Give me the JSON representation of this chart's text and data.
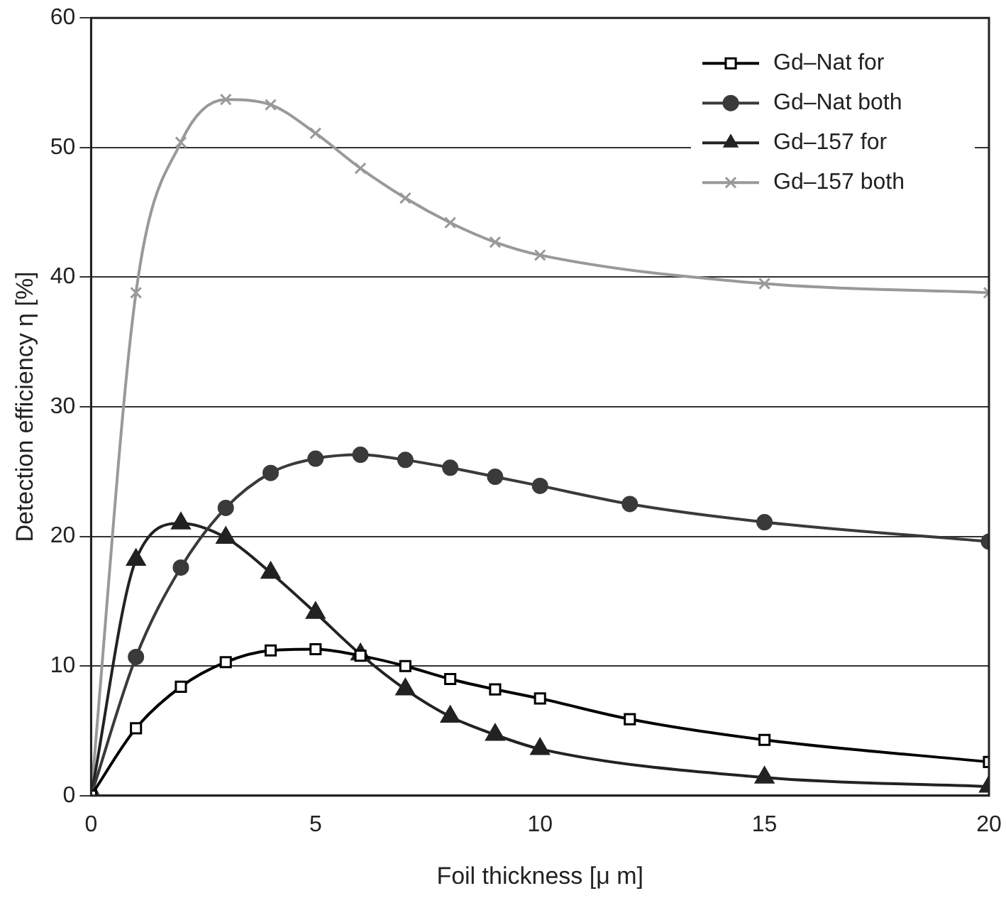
{
  "chart_data": {
    "type": "line",
    "xlabel": "Foil thickness [μ m]",
    "ylabel": "Detection efficiency η [%]",
    "xlim": [
      0,
      20
    ],
    "xticks": [
      0,
      5,
      10,
      15,
      20
    ],
    "ylim": [
      0,
      60
    ],
    "yticks": [
      0,
      10,
      20,
      30,
      40,
      50,
      60
    ],
    "grid": "y",
    "legend": "top right",
    "line_style": "solid",
    "series": [
      {
        "name": "Gd–Nat for",
        "color": "#000000",
        "marker": "square",
        "x": [
          0,
          1,
          2,
          3,
          4,
          5,
          6,
          7,
          8,
          9,
          10,
          12,
          15,
          20
        ],
        "values": [
          0,
          5.2,
          8.4,
          10.3,
          11.2,
          11.3,
          10.8,
          10.0,
          9.0,
          8.2,
          7.5,
          5.9,
          4.3,
          2.6
        ]
      },
      {
        "name": "Gd–Nat both",
        "color": "#3a3a3a",
        "marker": "circle",
        "x": [
          0,
          1,
          2,
          3,
          4,
          5,
          6,
          7,
          8,
          9,
          10,
          12,
          15,
          20
        ],
        "values": [
          0,
          10.7,
          17.6,
          22.2,
          24.9,
          26.0,
          26.3,
          25.9,
          25.3,
          24.6,
          23.9,
          22.5,
          21.1,
          19.6
        ]
      },
      {
        "name": "Gd–157 for",
        "color": "#222222",
        "marker": "triangle",
        "x": [
          0,
          1,
          2,
          3,
          4,
          5,
          6,
          7,
          8,
          9,
          10,
          15,
          20
        ],
        "values": [
          0,
          18.2,
          21.0,
          19.9,
          17.2,
          14.1,
          10.9,
          8.2,
          6.1,
          4.7,
          3.6,
          1.4,
          0.7
        ]
      },
      {
        "name": "Gd–157 both",
        "color": "#999999",
        "marker": "cross",
        "x": [
          0,
          1,
          2,
          3,
          4,
          5,
          6,
          7,
          8,
          9,
          10,
          15,
          20
        ],
        "values": [
          0,
          38.8,
          50.4,
          53.7,
          53.3,
          51.1,
          48.4,
          46.1,
          44.2,
          42.7,
          41.7,
          39.5,
          38.8
        ]
      }
    ]
  }
}
